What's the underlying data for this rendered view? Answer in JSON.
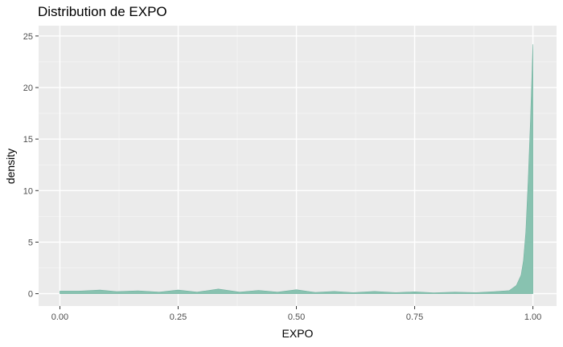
{
  "chart_data": {
    "type": "area",
    "title": "Distribution de EXPO",
    "xlabel": "EXPO",
    "ylabel": "density",
    "xlim": [
      -0.045,
      1.05
    ],
    "ylim": [
      -1.2,
      26.0
    ],
    "x_ticks": [
      0.0,
      0.25,
      0.5,
      0.75,
      1.0
    ],
    "x_tick_labels": [
      "0.00",
      "0.25",
      "0.50",
      "0.75",
      "1.00"
    ],
    "y_ticks": [
      0,
      5,
      10,
      15,
      20,
      25
    ],
    "y_tick_labels": [
      "0",
      "5",
      "10",
      "15",
      "20",
      "25"
    ],
    "grid": true,
    "legend": "none",
    "fill_color": "#88c2b0",
    "panel_color": "#ebebeb",
    "series": [
      {
        "x": [
          0.0,
          0.04,
          0.085,
          0.12,
          0.165,
          0.21,
          0.25,
          0.29,
          0.335,
          0.38,
          0.42,
          0.46,
          0.5,
          0.54,
          0.58,
          0.62,
          0.665,
          0.71,
          0.75,
          0.79,
          0.835,
          0.88,
          0.92,
          0.95,
          0.965,
          0.975,
          0.98,
          0.985,
          0.99,
          0.995,
          1.0,
          1.0
        ],
        "y": [
          0.25,
          0.25,
          0.35,
          0.2,
          0.28,
          0.15,
          0.35,
          0.15,
          0.45,
          0.15,
          0.32,
          0.15,
          0.38,
          0.12,
          0.22,
          0.1,
          0.22,
          0.1,
          0.18,
          0.08,
          0.15,
          0.1,
          0.2,
          0.3,
          0.8,
          1.8,
          3.2,
          6.0,
          11.0,
          17.0,
          24.2,
          0.0
        ]
      }
    ]
  }
}
